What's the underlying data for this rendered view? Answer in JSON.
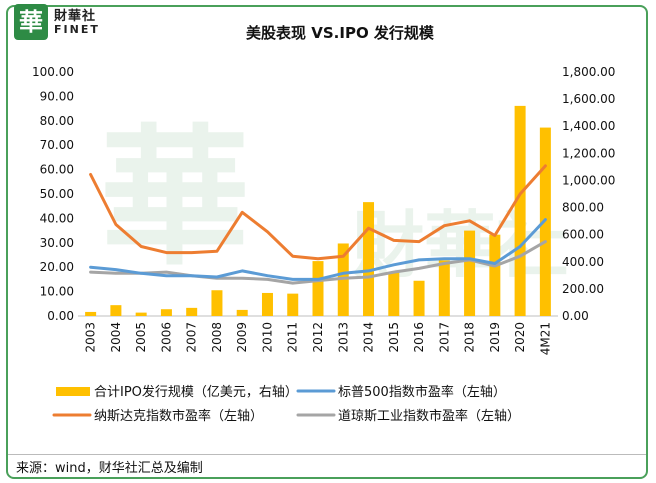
{
  "header": {
    "logo_char": "華",
    "logo_cn": "財華社",
    "logo_en": "FINET"
  },
  "source": "来源：wind，财华社汇总及编制",
  "watermark": {
    "char": "華",
    "text": "財華社"
  },
  "colors": {
    "bar": "#ffc000",
    "sp500": "#5b9bd5",
    "nasdaq": "#ed7d31",
    "dow": "#a5a5a5",
    "frame": "#4aa05a"
  },
  "chart_data": {
    "type": "bar+line",
    "title": "美股表现 VS.IPO 发行规模",
    "categories": [
      "2003",
      "2004",
      "2005",
      "2006",
      "2007",
      "2008",
      "2009",
      "2010",
      "2011",
      "2012",
      "2013",
      "2014",
      "2015",
      "2016",
      "2017",
      "2018",
      "2019",
      "2020",
      "4M21"
    ],
    "y_left": {
      "min": 0,
      "max": 100,
      "ticks": [
        "0.00",
        "10.00",
        "20.00",
        "30.00",
        "40.00",
        "50.00",
        "60.00",
        "70.00",
        "80.00",
        "90.00",
        "100.00"
      ]
    },
    "y_right": {
      "min": 0,
      "max": 1800,
      "ticks": [
        "0.00",
        "200.00",
        "400.00",
        "600.00",
        "800.00",
        "1,000.00",
        "1,200.00",
        "1,400.00",
        "1,600.00",
        "1,800.00"
      ]
    },
    "series": [
      {
        "name": "合计IPO发行规模（亿美元，右轴）",
        "type": "bar",
        "axis": "right",
        "values": [
          30,
          80,
          25,
          50,
          60,
          190,
          45,
          170,
          165,
          405,
          535,
          840,
          325,
          260,
          410,
          630,
          600,
          1550,
          1390
        ]
      },
      {
        "name": "标普500指数市盈率（左轴）",
        "type": "line",
        "axis": "left",
        "values": [
          20.0,
          19.0,
          17.5,
          16.5,
          16.5,
          16.0,
          18.5,
          16.5,
          15.0,
          15.0,
          17.5,
          18.5,
          21.0,
          23.0,
          23.5,
          23.5,
          21.5,
          28.5,
          39.5
        ]
      },
      {
        "name": "纳斯达克指数市盈率（左轴）",
        "type": "line",
        "axis": "left",
        "values": [
          58.0,
          37.5,
          28.5,
          26.0,
          26.0,
          26.5,
          42.5,
          34.5,
          24.5,
          23.5,
          24.5,
          36.0,
          31.0,
          30.5,
          37.0,
          39.0,
          33.0,
          50.0,
          61.5
        ]
      },
      {
        "name": "道琼斯工业指数市盈率（左轴）",
        "type": "line",
        "axis": "left",
        "values": [
          18.0,
          17.5,
          17.5,
          18.0,
          16.5,
          15.5,
          15.5,
          15.0,
          13.5,
          14.5,
          15.5,
          16.0,
          18.0,
          19.5,
          21.5,
          23.0,
          20.5,
          24.5,
          30.5
        ]
      }
    ],
    "legend": {
      "position": "bottom",
      "columns": 2
    }
  }
}
